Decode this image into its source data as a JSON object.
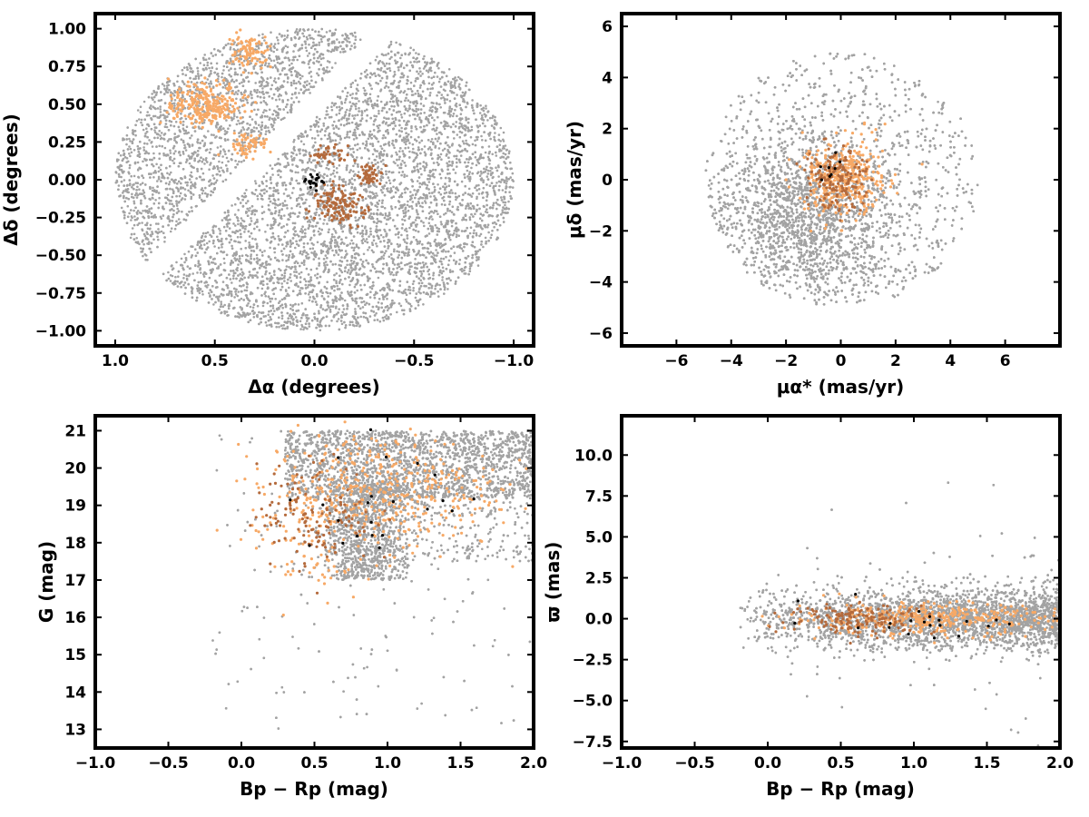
{
  "colors": {
    "field": "#a3a3a3",
    "light_orange": "#f7a966",
    "dark_orange": "#b46a3c",
    "black": "#000000"
  },
  "chart_data": [
    {
      "type": "scatter",
      "xlabel": "Δα (degrees)",
      "ylabel": "Δδ (degrees)",
      "xlim": [
        1.1,
        -1.1
      ],
      "ylim": [
        -1.1,
        1.1
      ],
      "x_inverted": true,
      "xticks": [
        1.0,
        0.5,
        0.0,
        -0.5,
        -1.0
      ],
      "xtick_labels": [
        "1.0",
        "0.5",
        "0.0",
        "−0.5",
        "−1.0"
      ],
      "yticks": [
        1.0,
        0.75,
        0.5,
        0.25,
        0.0,
        -0.25,
        -0.5,
        -0.75,
        -1.0
      ],
      "ytick_labels": [
        "1.00",
        "0.75",
        "0.50",
        "0.25",
        "0.00",
        "−0.25",
        "−0.50",
        "−0.75",
        "−1.00"
      ],
      "grid": false,
      "series": [
        {
          "color": "field",
          "points": 9000,
          "shape": "disk",
          "center": [
            0,
            0
          ],
          "radius": 1.0,
          "gap_band": {
            "a": -1.35,
            "b": 0.5,
            "half_width": 0.1
          }
        },
        {
          "color": "light_orange",
          "clumps": [
            {
              "x": 0.56,
              "y": 0.5,
              "sx": 0.09,
              "sy": 0.07,
              "n": 260
            },
            {
              "x": 0.33,
              "y": 0.85,
              "sx": 0.05,
              "sy": 0.06,
              "n": 90
            },
            {
              "x": 0.33,
              "y": 0.22,
              "sx": 0.05,
              "sy": 0.04,
              "n": 60
            }
          ]
        },
        {
          "color": "dark_orange",
          "clumps": [
            {
              "x": -0.13,
              "y": -0.18,
              "sx": 0.06,
              "sy": 0.07,
              "n": 140
            },
            {
              "x": -0.28,
              "y": 0.03,
              "sx": 0.03,
              "sy": 0.04,
              "n": 50
            },
            {
              "x": -0.07,
              "y": 0.17,
              "sx": 0.04,
              "sy": 0.03,
              "n": 40
            }
          ]
        },
        {
          "color": "black",
          "clumps": [
            {
              "x": 0.0,
              "y": 0.0,
              "sx": 0.025,
              "sy": 0.03,
              "n": 22
            }
          ]
        }
      ]
    },
    {
      "type": "scatter",
      "xlabel": "μα* (mas/yr)",
      "ylabel": "μδ (mas/yr)",
      "xlim": [
        -8.0,
        8.0
      ],
      "ylim": [
        -6.5,
        6.5
      ],
      "xticks": [
        -6,
        -4,
        -2,
        0,
        2,
        4,
        6
      ],
      "xtick_labels": [
        "−6",
        "−4",
        "−2",
        "0",
        "2",
        "4",
        "6"
      ],
      "yticks": [
        6,
        4,
        2,
        0,
        -2,
        -4,
        -6
      ],
      "ytick_labels": [
        "6",
        "4",
        "2",
        "0",
        "−2",
        "−4",
        "−6"
      ],
      "grid": false,
      "series": [
        {
          "color": "field",
          "points": 9000,
          "shape": "disk",
          "center": [
            0,
            0
          ],
          "radius": 5.0,
          "core": {
            "x": -1.2,
            "y": -1.5,
            "sx": 1.6,
            "sy": 1.6
          }
        },
        {
          "color": "light_orange",
          "clumps": [
            {
              "x": 0.1,
              "y": 0.0,
              "sx": 0.75,
              "sy": 0.75,
              "n": 380
            }
          ]
        },
        {
          "color": "dark_orange",
          "clumps": [
            {
              "x": -0.1,
              "y": 0.1,
              "sx": 0.6,
              "sy": 0.6,
              "n": 160
            }
          ]
        },
        {
          "color": "black",
          "clumps": [
            {
              "x": -0.5,
              "y": 0.6,
              "sx": 0.25,
              "sy": 0.25,
              "n": 8
            }
          ]
        }
      ]
    },
    {
      "type": "scatter",
      "xlabel": "Bp − Rp (mag)",
      "ylabel": "G (mag)",
      "xlim": [
        -1.0,
        2.0
      ],
      "ylim": [
        12.5,
        21.4
      ],
      "xticks": [
        -1.0,
        -0.5,
        0.0,
        0.5,
        1.0,
        1.5,
        2.0
      ],
      "xtick_labels": [
        "−1.0",
        "−0.5",
        "0.0",
        "0.5",
        "1.0",
        "1.5",
        "2.0"
      ],
      "yticks": [
        21,
        20,
        19,
        18,
        17,
        16,
        15,
        14,
        13
      ],
      "ytick_labels": [
        "21",
        "20",
        "19",
        "18",
        "17",
        "16",
        "15",
        "14",
        "13"
      ],
      "grid": false,
      "series": [
        {
          "color": "field",
          "points": 9000,
          "shape": "cmd"
        },
        {
          "color": "light_orange",
          "clumps": [
            {
              "x": 0.95,
              "y": 19.4,
              "sx": 0.4,
              "sy": 0.8,
              "n": 420
            },
            {
              "x": 0.45,
              "y": 18.2,
              "sx": 0.2,
              "sy": 1.0,
              "n": 90
            }
          ]
        },
        {
          "color": "dark_orange",
          "clumps": [
            {
              "x": 0.5,
              "y": 18.8,
              "sx": 0.2,
              "sy": 0.7,
              "n": 140
            }
          ]
        },
        {
          "color": "black",
          "clumps": [
            {
              "x": 1.1,
              "y": 19.3,
              "sx": 0.4,
              "sy": 0.8,
              "n": 22
            }
          ]
        }
      ]
    },
    {
      "type": "scatter",
      "xlabel": "Bp − Rp (mag)",
      "ylabel": "ϖ (mas)",
      "xlim": [
        -1.0,
        2.0
      ],
      "ylim": [
        -7.9,
        12.4
      ],
      "xticks": [
        -1.0,
        -0.5,
        0.0,
        0.5,
        1.0,
        1.5,
        2.0
      ],
      "xtick_labels": [
        "−1.0",
        "−0.5",
        "0.0",
        "0.5",
        "1.0",
        "1.5",
        "2.0"
      ],
      "yticks": [
        10.0,
        7.5,
        5.0,
        2.5,
        0.0,
        -2.5,
        -5.0,
        -7.5
      ],
      "ytick_labels": [
        "10.0",
        "7.5",
        "5.0",
        "2.5",
        "0.0",
        "−2.5",
        "−5.0",
        "−7.5"
      ],
      "grid": false,
      "series": [
        {
          "color": "field",
          "points": 9000,
          "shape": "plx"
        },
        {
          "color": "light_orange",
          "clumps": [
            {
              "x": 1.05,
              "y": 0.0,
              "sx": 0.45,
              "sy": 0.5,
              "n": 380
            }
          ]
        },
        {
          "color": "dark_orange",
          "clumps": [
            {
              "x": 0.65,
              "y": 0.0,
              "sx": 0.25,
              "sy": 0.45,
              "n": 150
            }
          ]
        },
        {
          "color": "black",
          "clumps": [
            {
              "x": 1.05,
              "y": -0.2,
              "sx": 0.4,
              "sy": 0.6,
              "n": 20
            }
          ]
        }
      ]
    }
  ]
}
